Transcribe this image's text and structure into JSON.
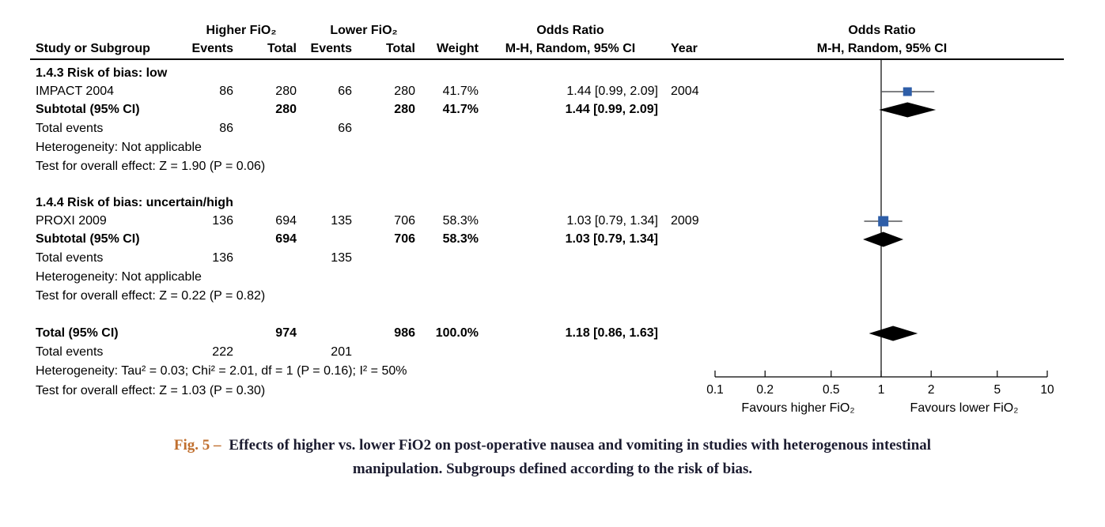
{
  "colors": {
    "marker_blue": "#2e5ea8",
    "diamond": "#000000",
    "ci_line": "#55575a",
    "caption_accent": "#c06f2e",
    "caption_text": "#1c1c30"
  },
  "header": {
    "higher": "Higher FiO₂",
    "lower": "Lower FiO₂",
    "odds_ratio_left": "Odds Ratio",
    "odds_ratio_right": "Odds Ratio",
    "study": "Study or Subgroup",
    "events1": "Events",
    "total1": "Total",
    "events2": "Events",
    "total2": "Total",
    "weight": "Weight",
    "mh_left": "M-H, Random, 95% CI",
    "year": "Year",
    "mh_right": "M-H, Random, 95% CI"
  },
  "groups": [
    {
      "title": "1.4.3 Risk of bias: low",
      "studies": [
        {
          "name": "IMPACT 2004",
          "e1": "86",
          "t1": "280",
          "e2": "66",
          "t2": "280",
          "weight": "41.7%",
          "ci": "1.44 [0.99, 2.09]",
          "year": "2004"
        }
      ],
      "subtotal": {
        "name": "Subtotal (95% CI)",
        "t1": "280",
        "t2": "280",
        "weight": "41.7%",
        "ci": "1.44 [0.99, 2.09]"
      },
      "total_events": {
        "label": "Total events",
        "e1": "86",
        "e2": "66"
      },
      "heterogeneity": "Heterogeneity: Not applicable",
      "overall": "Test for overall effect: Z = 1.90 (P = 0.06)"
    },
    {
      "title": "1.4.4 Risk of bias: uncertain/high",
      "studies": [
        {
          "name": "PROXI 2009",
          "e1": "136",
          "t1": "694",
          "e2": "135",
          "t2": "706",
          "weight": "58.3%",
          "ci": "1.03 [0.79, 1.34]",
          "year": "2009"
        }
      ],
      "subtotal": {
        "name": "Subtotal (95% CI)",
        "t1": "694",
        "t2": "706",
        "weight": "58.3%",
        "ci": "1.03 [0.79, 1.34]"
      },
      "total_events": {
        "label": "Total events",
        "e1": "136",
        "e2": "135"
      },
      "heterogeneity": "Heterogeneity: Not applicable",
      "overall": "Test for overall effect: Z = 0.22 (P = 0.82)"
    }
  ],
  "total": {
    "name": "Total (95% CI)",
    "t1": "974",
    "t2": "986",
    "weight": "100.0%",
    "ci": "1.18 [0.86, 1.63]",
    "total_events": {
      "label": "Total events",
      "e1": "222",
      "e2": "201"
    },
    "heterogeneity": "Heterogeneity: Tau² = 0.03; Chi² = 2.01, df = 1 (P = 0.16); I² = 50%",
    "overall": "Test for overall effect: Z = 1.03 (P = 0.30)"
  },
  "caption": {
    "fig_label_with_dash": "Fig. 5 –",
    "line1": "Effects of higher vs. lower FiO2 on post-operative nausea and vomiting in studies with heterogenous intestinal",
    "line2": "manipulation. Subgroups defined according to the risk of bias."
  },
  "chart_data": {
    "type": "scatter",
    "subtype": "forest-plot",
    "title": "Odds Ratio, M-H, Random, 95% CI",
    "x_scale": "log",
    "xlim": [
      0.1,
      10
    ],
    "x_ticks": [
      0.1,
      0.2,
      0.5,
      1,
      2,
      5,
      10
    ],
    "x_tick_labels": [
      "0.1",
      "0.2",
      "0.5",
      "1",
      "2",
      "5",
      "10"
    ],
    "null_line": 1,
    "favours_left": "Favours higher FiO₂",
    "favours_right": "Favours lower FiO₂",
    "series": [
      {
        "name": "IMPACT 2004",
        "type": "study",
        "or": 1.44,
        "ci_low": 0.99,
        "ci_high": 2.09,
        "weight_pct": 41.7,
        "year": 2004
      },
      {
        "name": "Subtotal 1.4.3 Risk of bias: low",
        "type": "pooled",
        "or": 1.44,
        "ci_low": 0.99,
        "ci_high": 2.09,
        "weight_pct": 41.7
      },
      {
        "name": "PROXI 2009",
        "type": "study",
        "or": 1.03,
        "ci_low": 0.79,
        "ci_high": 1.34,
        "weight_pct": 58.3,
        "year": 2009
      },
      {
        "name": "Subtotal 1.4.4 Risk of bias: uncertain/high",
        "type": "pooled",
        "or": 1.03,
        "ci_low": 0.79,
        "ci_high": 1.34,
        "weight_pct": 58.3
      },
      {
        "name": "Total (95% CI)",
        "type": "pooled",
        "or": 1.18,
        "ci_low": 0.86,
        "ci_high": 1.63,
        "weight_pct": 100.0
      }
    ]
  }
}
